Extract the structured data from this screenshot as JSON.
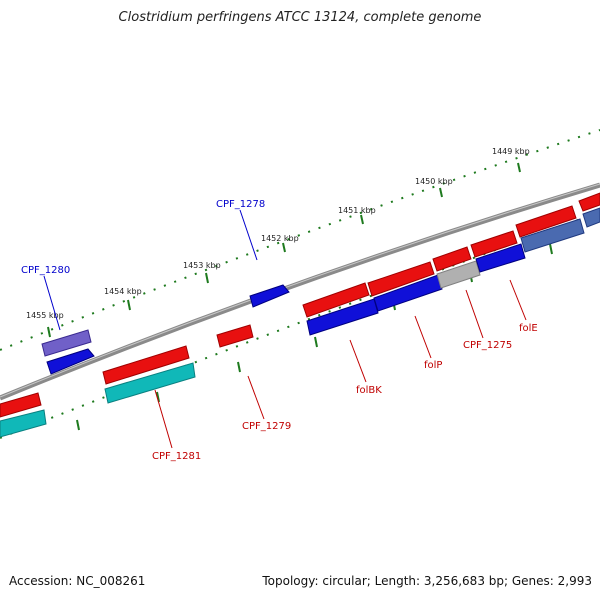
{
  "title": "Clostridium perfringens ATCC 13124, complete genome",
  "footer": {
    "accession": "Accession: NC_008261",
    "summary": "Topology: circular; Length: 3,256,683 bp; Genes: 2,993"
  },
  "colors": {
    "backbone": "#7a7a7a",
    "ticks": "#1e7a1e",
    "fwd_gene": "#e81010",
    "rev_gene": "#1010d8",
    "cyan_gene": "#10b8b8",
    "label_fwd": "#c00000",
    "label_rev": "#0000cc"
  },
  "ticks": [
    "1449 kbp",
    "1450 kbp",
    "1451 kbp",
    "1452 kbp",
    "1453 kbp",
    "1454 kbp",
    "1455 kbp"
  ],
  "gene_labels": {
    "cpf1280": "CPF_1280",
    "cpf1278": "CPF_1278",
    "cpf1281": "CPF_1281",
    "cpf1279": "CPF_1279",
    "folBK": "folBK",
    "folP": "folP",
    "cpf1275": "CPF_1275",
    "folE": "folE"
  }
}
